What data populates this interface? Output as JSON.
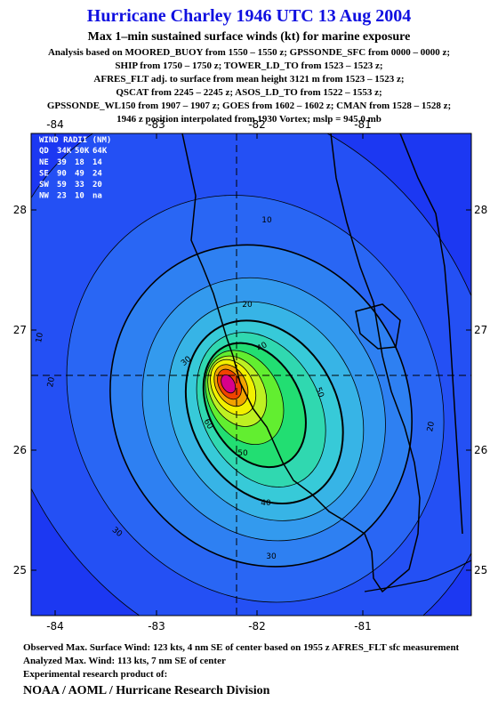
{
  "header": {
    "title": "Hurricane Charley 1946 UTC 13 Aug 2004",
    "subtitle": "Max 1–min sustained surface winds (kt) for marine exposure",
    "analysis_lines": [
      "Analysis based on  MOORED_BUOY from 1550 – 1550 z;  GPSSONDE_SFC from 0000 – 0000 z;",
      "SHIP from 1750 – 1750 z;  TOWER_LD_TO from 1523 – 1523 z;",
      "AFRES_FLT adj. to surface from mean height 3121 m from 1523 – 1523 z;",
      "QSCAT from 2245 – 2245 z;  ASOS_LD_TO from 1522 – 1553 z;",
      "GPSSONDE_WL150 from 1907 – 1907 z;  GOES from 1602 – 1602 z;  CMAN from 1528 – 1528 z;",
      "1946 z position interpolated from 1930 Vortex; mslp = 945.0 mb"
    ]
  },
  "map": {
    "lon_labels": [
      "-84",
      "-83",
      "-82",
      "-81"
    ],
    "lat_labels": [
      "28",
      "27",
      "26",
      "25"
    ],
    "contour_labels": [
      "10",
      "10",
      "20",
      "20",
      "20",
      "30",
      "30",
      "30",
      "40",
      "40",
      "50",
      "50",
      "60"
    ],
    "wind_radii": {
      "title": "WIND RADII (NM)",
      "columns": [
        "QD",
        "34K",
        "50K",
        "64K"
      ],
      "rows": [
        [
          "NE",
          "39",
          "18",
          "14"
        ],
        [
          "SE",
          "90",
          "49",
          "24"
        ],
        [
          "SW",
          "59",
          "33",
          "20"
        ],
        [
          "NW",
          "23",
          "10",
          "na"
        ]
      ]
    }
  },
  "footer": {
    "lines": [
      "Observed Max. Surface Wind: 123 kts, 4 nm SE of center based on 1955 z AFRES_FLT sfc measurement",
      "Analyzed Max. Wind: 113 kts, 7 nm SE of center",
      "Experimental research product of:"
    ],
    "credit": "NOAA / AOML / Hurricane Research Division"
  }
}
